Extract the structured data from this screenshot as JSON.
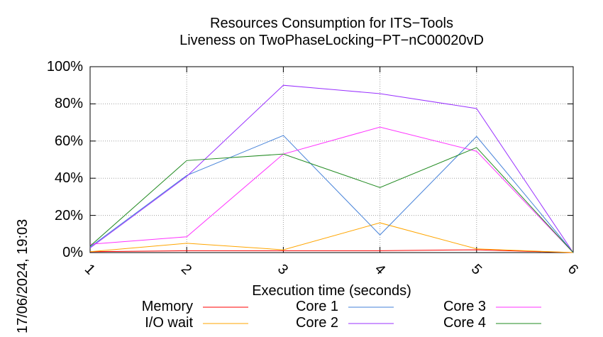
{
  "chart_data": {
    "type": "line",
    "title": "Resources Consumption for ITS−Tools",
    "subtitle": "Liveness on TwoPhaseLocking−PT−nC00020vD",
    "xlabel": "Execution time (seconds)",
    "ylabel": "",
    "x": [
      1,
      2,
      3,
      4,
      5,
      6
    ],
    "xlim": [
      1,
      6
    ],
    "ylim": [
      0,
      100
    ],
    "x_ticks": [
      "1",
      "2",
      "3",
      "4",
      "5",
      "6"
    ],
    "y_ticks": [
      "0%",
      "20%",
      "40%",
      "60%",
      "80%",
      "100%"
    ],
    "grid": true,
    "legend_position": "bottom",
    "timestamp": "17/06/2024, 19:03",
    "series": [
      {
        "name": "Memory",
        "color": "#ff0000",
        "values": [
          0.5,
          1,
          1,
          1,
          1.5,
          0
        ]
      },
      {
        "name": "I/O wait",
        "color": "#ffa500",
        "values": [
          0.5,
          5,
          1.5,
          16,
          2,
          0
        ]
      },
      {
        "name": "Core 1",
        "color": "#4682d9",
        "values": [
          3,
          41.5,
          63,
          9.5,
          62.5,
          0
        ]
      },
      {
        "name": "Core 2",
        "color": "#9a32ff",
        "values": [
          2.5,
          41,
          90,
          85.5,
          77.5,
          0
        ]
      },
      {
        "name": "Core 3",
        "color": "#ff32ff",
        "values": [
          4.5,
          8.5,
          53,
          67.5,
          54.5,
          0
        ]
      },
      {
        "name": "Core 4",
        "color": "#228b22",
        "values": [
          3.5,
          49.5,
          53,
          35,
          56.5,
          0
        ]
      }
    ]
  }
}
